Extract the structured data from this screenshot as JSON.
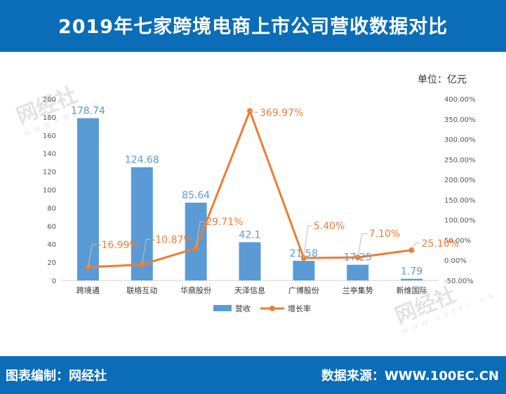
{
  "header": {
    "title": "2019年七家跨境电商上市公司营收数据对比"
  },
  "unit_label": "单位：亿元",
  "watermark": {
    "brand": "网经社",
    "sub": "网络经济服务平台",
    "url": "WWW.100EC.CN"
  },
  "footer": {
    "editor": "图表编制：网经社",
    "source": "数据来源：WWW.100EC.CN"
  },
  "colors": {
    "header_bg": "#0b6db7",
    "bar": "#5b9bd5",
    "line": "#ed7d31"
  },
  "chart_data": {
    "type": "bar",
    "categories": [
      "跨境通",
      "联络互动",
      "华鼎股份",
      "天泽信息",
      "广博股份",
      "兰亭集势",
      "新维国际"
    ],
    "series": [
      {
        "name": "营收",
        "type": "bar",
        "axis": "left",
        "values": [
          178.74,
          124.68,
          85.64,
          42.1,
          21.58,
          17.25,
          1.79
        ],
        "labels": [
          "178.74",
          "124.68",
          "85.64",
          "42.1",
          "21.58",
          "17.25",
          "1.79"
        ]
      },
      {
        "name": "增长率",
        "type": "line",
        "axis": "right",
        "values": [
          -16.99,
          -10.87,
          29.71,
          369.97,
          5.4,
          7.1,
          25.1
        ],
        "labels": [
          "-16.99%",
          "-10.87%",
          "29.71%",
          "369.97%",
          "5.40%",
          "7.10%",
          "25.10%"
        ]
      }
    ],
    "y_left": {
      "lim": [
        0,
        200
      ],
      "ticks": [
        "0",
        "20",
        "40",
        "60",
        "80",
        "100",
        "120",
        "140",
        "160",
        "180",
        "200"
      ]
    },
    "y_right": {
      "lim": [
        -50,
        400
      ],
      "ticks": [
        "-50.00%",
        "0.00%",
        "50.00%",
        "100.00%",
        "150.00%",
        "200.00%",
        "250.00%",
        "300.00%",
        "350.00%",
        "400.00%"
      ]
    },
    "grid": false,
    "legend": "bottom"
  }
}
